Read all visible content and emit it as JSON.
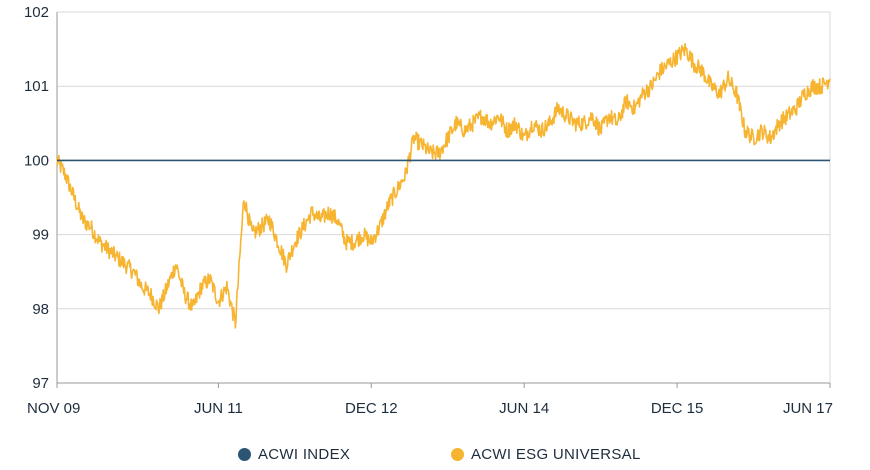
{
  "colors": {
    "index": "#2c5573",
    "esg": "#f6b431",
    "grid": "#d9d9d9",
    "axis": "#9a9a9a"
  },
  "chart_data": {
    "type": "line",
    "title": "",
    "xlabel": "",
    "ylabel": "",
    "ylim": [
      97,
      102
    ],
    "yticks": [
      "97",
      "98",
      "99",
      "100",
      "101",
      "102"
    ],
    "x_tick_labels": [
      "NOV 09",
      "JUN 11",
      "DEC 12",
      "JUN 14",
      "DEC 15",
      "JUN 17"
    ],
    "x_ticks": [
      "2009-11",
      "2011-06",
      "2012-12",
      "2014-06",
      "2015-12",
      "2017-06"
    ],
    "grid": true,
    "legend": "bottom",
    "series": [
      {
        "name": "ACWI INDEX",
        "color": "#2c5573",
        "points": [
          [
            "2009-11",
            100
          ],
          [
            "2017-06",
            100
          ]
        ]
      },
      {
        "name": "ACWI ESG UNIVERSAL",
        "color": "#f6b431",
        "points": [
          [
            "2009-11",
            100.0
          ],
          [
            "2009-12",
            99.8
          ],
          [
            "2010-01",
            99.5
          ],
          [
            "2010-02",
            99.2
          ],
          [
            "2010-03",
            99.1
          ],
          [
            "2010-04",
            98.9
          ],
          [
            "2010-05",
            98.8
          ],
          [
            "2010-06",
            98.7
          ],
          [
            "2010-07",
            98.6
          ],
          [
            "2010-08",
            98.5
          ],
          [
            "2010-09",
            98.3
          ],
          [
            "2010-10",
            98.2
          ],
          [
            "2010-11",
            98.0
          ],
          [
            "2010-12",
            98.3
          ],
          [
            "2011-01",
            98.6
          ],
          [
            "2011-02",
            98.2
          ],
          [
            "2011-03",
            98.0
          ],
          [
            "2011-04",
            98.3
          ],
          [
            "2011-05",
            98.4
          ],
          [
            "2011-06",
            98.1
          ],
          [
            "2011-07",
            98.3
          ],
          [
            "2011-08",
            97.8
          ],
          [
            "2011-09",
            99.5
          ],
          [
            "2011-10",
            99.0
          ],
          [
            "2011-11",
            99.1
          ],
          [
            "2011-12",
            99.2
          ],
          [
            "2012-01",
            98.9
          ],
          [
            "2012-02",
            98.6
          ],
          [
            "2012-03",
            98.9
          ],
          [
            "2012-04",
            99.1
          ],
          [
            "2012-05",
            99.3
          ],
          [
            "2012-06",
            99.2
          ],
          [
            "2012-07",
            99.3
          ],
          [
            "2012-08",
            99.2
          ],
          [
            "2012-09",
            98.9
          ],
          [
            "2012-10",
            98.9
          ],
          [
            "2012-11",
            99.0
          ],
          [
            "2012-12",
            98.9
          ],
          [
            "2013-01",
            99.1
          ],
          [
            "2013-02",
            99.4
          ],
          [
            "2013-03",
            99.6
          ],
          [
            "2013-04",
            99.8
          ],
          [
            "2013-05",
            100.3
          ],
          [
            "2013-06",
            100.2
          ],
          [
            "2013-07",
            100.1
          ],
          [
            "2013-08",
            100.1
          ],
          [
            "2013-09",
            100.3
          ],
          [
            "2013-10",
            100.5
          ],
          [
            "2013-11",
            100.4
          ],
          [
            "2013-12",
            100.5
          ],
          [
            "2014-01",
            100.6
          ],
          [
            "2014-02",
            100.5
          ],
          [
            "2014-03",
            100.6
          ],
          [
            "2014-04",
            100.4
          ],
          [
            "2014-05",
            100.5
          ],
          [
            "2014-06",
            100.3
          ],
          [
            "2014-07",
            100.5
          ],
          [
            "2014-08",
            100.4
          ],
          [
            "2014-09",
            100.5
          ],
          [
            "2014-10",
            100.7
          ],
          [
            "2014-11",
            100.6
          ],
          [
            "2014-12",
            100.5
          ],
          [
            "2015-01",
            100.5
          ],
          [
            "2015-02",
            100.6
          ],
          [
            "2015-03",
            100.4
          ],
          [
            "2015-04",
            100.6
          ],
          [
            "2015-05",
            100.5
          ],
          [
            "2015-06",
            100.8
          ],
          [
            "2015-07",
            100.7
          ],
          [
            "2015-08",
            100.9
          ],
          [
            "2015-09",
            101.0
          ],
          [
            "2015-10",
            101.2
          ],
          [
            "2015-11",
            101.3
          ],
          [
            "2015-12",
            101.4
          ],
          [
            "2016-01",
            101.5
          ],
          [
            "2016-02",
            101.3
          ],
          [
            "2016-03",
            101.2
          ],
          [
            "2016-04",
            101.0
          ],
          [
            "2016-05",
            100.9
          ],
          [
            "2016-06",
            101.1
          ],
          [
            "2016-07",
            100.9
          ],
          [
            "2016-08",
            100.4
          ],
          [
            "2016-09",
            100.3
          ],
          [
            "2016-10",
            100.4
          ],
          [
            "2016-11",
            100.3
          ],
          [
            "2016-12",
            100.5
          ],
          [
            "2017-01",
            100.6
          ],
          [
            "2017-02",
            100.7
          ],
          [
            "2017-03",
            100.9
          ],
          [
            "2017-04",
            101.0
          ],
          [
            "2017-05",
            101.0
          ],
          [
            "2017-06",
            101.1
          ]
        ]
      }
    ]
  }
}
